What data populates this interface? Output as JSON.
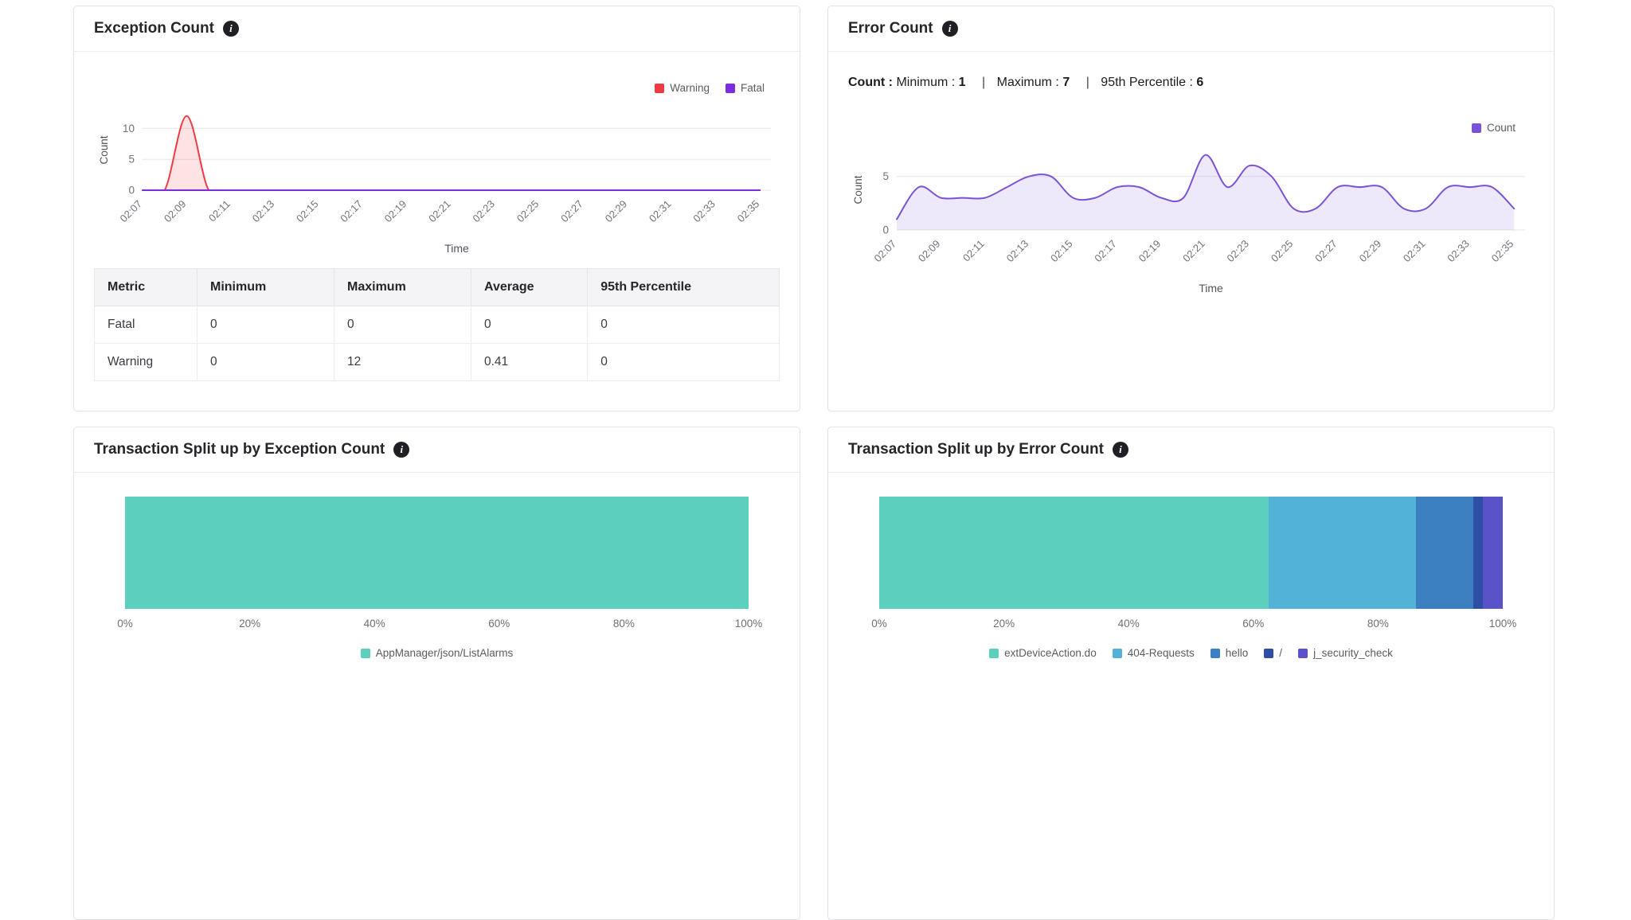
{
  "panels": {
    "exception": {
      "title": "Exception Count",
      "legend": [
        {
          "label": "Warning",
          "color": "#ee3b43"
        },
        {
          "label": "Fatal",
          "color": "#7c2be0"
        }
      ],
      "table": {
        "headers": [
          "Metric",
          "Minimum",
          "Maximum",
          "Average",
          "95th Percentile"
        ],
        "rows": [
          [
            "Fatal",
            "0",
            "0",
            "0",
            "0"
          ],
          [
            "Warning",
            "0",
            "12",
            "0.41",
            "0"
          ]
        ]
      }
    },
    "error": {
      "title": "Error Count",
      "legend": [
        {
          "label": "Count",
          "color": "#7a52d6"
        }
      ],
      "stats": {
        "title": "Count :",
        "min_label": "Minimum :",
        "min": "1",
        "max_label": "Maximum :",
        "max": "7",
        "p95_label": "95th Percentile :",
        "p95": "6",
        "sep": "|"
      }
    },
    "txException": {
      "title": "Transaction Split up by Exception Count"
    },
    "txError": {
      "title": "Transaction Split up by Error Count"
    }
  },
  "chart_data": [
    {
      "id": "exception-count",
      "type": "area",
      "title": "Exception Count",
      "xlabel": "Time",
      "ylabel": "Count",
      "x": [
        "02:07",
        "02:08",
        "02:09",
        "02:10",
        "02:11",
        "02:12",
        "02:13",
        "02:14",
        "02:15",
        "02:16",
        "02:17",
        "02:18",
        "02:19",
        "02:20",
        "02:21",
        "02:22",
        "02:23",
        "02:24",
        "02:25",
        "02:26",
        "02:27",
        "02:28",
        "02:29",
        "02:30",
        "02:31",
        "02:32",
        "02:33",
        "02:34",
        "02:35"
      ],
      "tick_every": 2,
      "ylim": [
        0,
        13
      ],
      "yticks": [
        0,
        5,
        10
      ],
      "extend": 0.5,
      "legend_position": "top-right",
      "grid": true,
      "series": [
        {
          "name": "Warning",
          "color": "#ee3b43",
          "fill": "rgba(238,59,67,0.14)",
          "values": [
            0,
            0,
            12,
            0,
            0,
            0,
            0,
            0,
            0,
            0,
            0,
            0,
            0,
            0,
            0,
            0,
            0,
            0,
            0,
            0,
            0,
            0,
            0,
            0,
            0,
            0,
            0,
            0,
            0
          ]
        },
        {
          "name": "Fatal",
          "color": "#7c2be0",
          "fill": null,
          "values": [
            0,
            0,
            0,
            0,
            0,
            0,
            0,
            0,
            0,
            0,
            0,
            0,
            0,
            0,
            0,
            0,
            0,
            0,
            0,
            0,
            0,
            0,
            0,
            0,
            0,
            0,
            0,
            0,
            0
          ]
        }
      ]
    },
    {
      "id": "error-count",
      "type": "area",
      "title": "Error Count",
      "xlabel": "Time",
      "ylabel": "Count",
      "x": [
        "02:07",
        "02:08",
        "02:09",
        "02:10",
        "02:11",
        "02:12",
        "02:13",
        "02:14",
        "02:15",
        "02:16",
        "02:17",
        "02:18",
        "02:19",
        "02:20",
        "02:21",
        "02:22",
        "02:23",
        "02:24",
        "02:25",
        "02:26",
        "02:27",
        "02:28",
        "02:29",
        "02:30",
        "02:31",
        "02:32",
        "02:33",
        "02:34",
        "02:35"
      ],
      "tick_every": 2,
      "ylim": [
        0,
        7.5
      ],
      "yticks": [
        0,
        5
      ],
      "extend": 0.5,
      "legend_position": "top-right",
      "grid": true,
      "stats": {
        "minimum": 1,
        "maximum": 7,
        "p95": 6
      },
      "series": [
        {
          "name": "Count",
          "color": "#7a52d6",
          "fill": "rgba(122,82,214,0.13)",
          "values": [
            1,
            4,
            3,
            3,
            3,
            4,
            5,
            5,
            3,
            3,
            4,
            4,
            3,
            3,
            7,
            4,
            6,
            5,
            2,
            2,
            4,
            4,
            4,
            2,
            2,
            4,
            4,
            4,
            2
          ]
        }
      ]
    },
    {
      "id": "tx-exception-split",
      "type": "bar",
      "stacked": true,
      "orientation": "horizontal",
      "unit": "%",
      "title": "Transaction Split up by Exception Count",
      "xticks": [
        "0%",
        "20%",
        "40%",
        "60%",
        "80%",
        "100%"
      ],
      "xlim": [
        0,
        100
      ],
      "segments": [
        {
          "label": "AppManager/json/ListAlarms",
          "color": "#5dcfbe",
          "value": 100
        }
      ]
    },
    {
      "id": "tx-error-split",
      "type": "bar",
      "stacked": true,
      "orientation": "horizontal",
      "unit": "%",
      "title": "Transaction Split up by Error Count",
      "xticks": [
        "0%",
        "20%",
        "40%",
        "60%",
        "80%",
        "100%"
      ],
      "xlim": [
        0,
        100
      ],
      "segments": [
        {
          "label": "extDeviceAction.do",
          "color": "#5dcfbe",
          "value": 62.5
        },
        {
          "label": "404-Requests",
          "color": "#52b2d8",
          "value": 23.6
        },
        {
          "label": "hello",
          "color": "#3c7fc0",
          "value": 9.2
        },
        {
          "label": "/",
          "color": "#2e4ea6",
          "value": 1.5
        },
        {
          "label": "j_security_check",
          "color": "#5a52c9",
          "value": 3.2
        }
      ]
    }
  ]
}
